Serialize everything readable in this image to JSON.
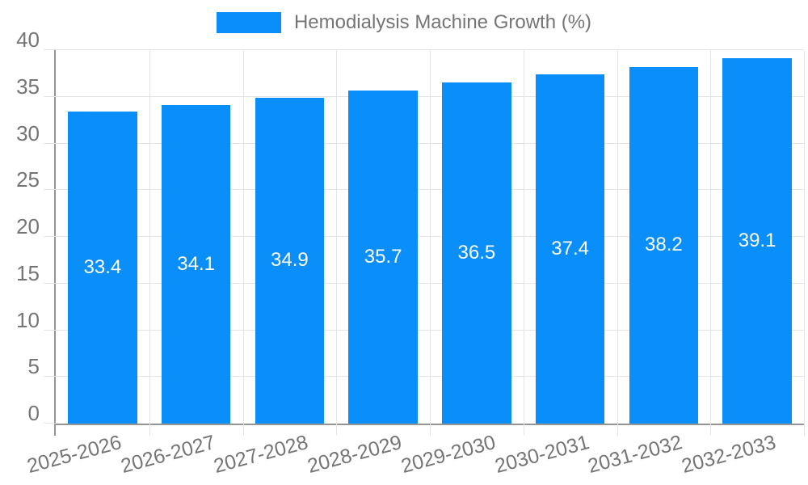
{
  "legend": {
    "label": "Hemodialysis Machine Growth (%)"
  },
  "chart_data": {
    "type": "bar",
    "title": "",
    "xlabel": "",
    "ylabel": "",
    "series_name": "Hemodialysis Machine Growth (%)",
    "categories": [
      "2025-2026",
      "2026-2027",
      "2027-2028",
      "2028-2029",
      "2029-2030",
      "2030-2031",
      "2031-2032",
      "2032-2033"
    ],
    "values": [
      33.4,
      34.1,
      34.9,
      35.7,
      36.5,
      37.4,
      38.2,
      39.1
    ],
    "value_labels": [
      "33.4",
      "34.1",
      "34.9",
      "35.7",
      "36.5",
      "37.4",
      "38.2",
      "39.1"
    ],
    "ylim": [
      0,
      40
    ],
    "ytick_step": 5,
    "ytick_labels": [
      "0",
      "5",
      "10",
      "15",
      "20",
      "25",
      "30",
      "35",
      "40"
    ],
    "grid": true,
    "legend_position": "top",
    "xlabel_rotation_deg": -15
  },
  "colors": {
    "bar": "#0a8ef9",
    "grid": "#e4e4e4",
    "axis_line": "#949494",
    "axis_text": "#757575",
    "value_label_text": "#ffffff",
    "background": "#ffffff"
  }
}
